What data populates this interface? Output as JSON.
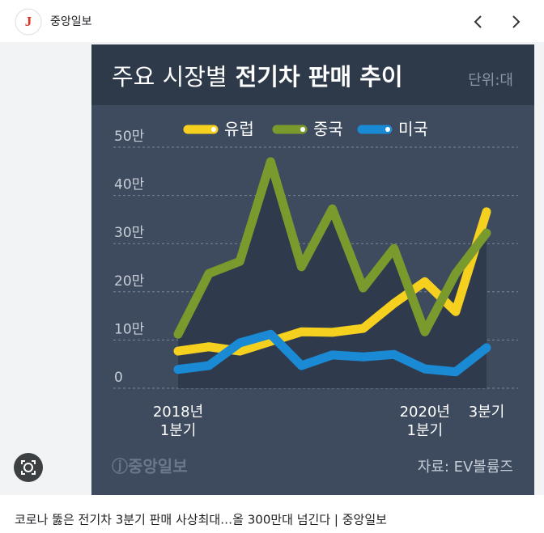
{
  "header": {
    "logo": "J",
    "source": "중앙일보"
  },
  "caption": "코로나 뚫은 전기차 3분기 판매 사상최대…올 300만대 넘긴다 | 중앙일보",
  "chart_data": {
    "type": "line",
    "title": [
      "주요 시장별",
      "전기차 판매 추이"
    ],
    "unit": "단위:대",
    "source": "자료: EV볼륨즈",
    "watermark": "ⓙ중앙일보",
    "categories": [
      "2018년\n1분기",
      null,
      null,
      null,
      null,
      null,
      null,
      null,
      "2020년\n1분기",
      null,
      "3분기"
    ],
    "series": [
      {
        "name": "유럽",
        "color": "#f6d01e",
        "values": [
          77000,
          86000,
          77000,
          97000,
          117000,
          116000,
          124000,
          176000,
          221000,
          159000,
          366000
        ]
      },
      {
        "name": "중국",
        "color": "#7a9a2e",
        "values": [
          112000,
          238000,
          263000,
          470000,
          252000,
          372000,
          208000,
          290000,
          117000,
          238000,
          322000
        ]
      },
      {
        "name": "미국",
        "color": "#1a8ad4",
        "values": [
          39000,
          47000,
          94000,
          112000,
          47000,
          69000,
          65000,
          70000,
          40000,
          34000,
          84000
        ]
      }
    ],
    "ylim": [
      0,
      500000
    ],
    "yticks": [
      0,
      {
        "value": 100000,
        "label": "10만"
      },
      {
        "value": 200000,
        "label": "20만"
      },
      {
        "value": 300000,
        "label": "30만"
      },
      {
        "value": 400000,
        "label": "40만"
      },
      {
        "value": 500000,
        "label": "50만"
      }
    ],
    "grid": true
  }
}
